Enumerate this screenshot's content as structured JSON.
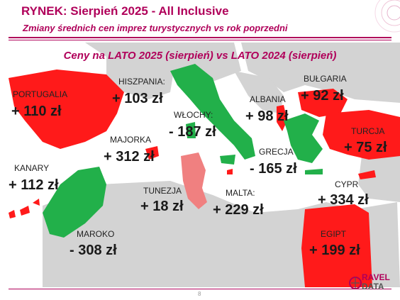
{
  "slide": {
    "title": "RYNEK: Sierpień 2025 - All Inclusive",
    "subtitle": "Zmiany średnich cen imprez turystycznych vs rok poprzedni",
    "heading": "Ceny na LATO 2025 (sierpień) vs  LATO 2024 (sierpień)",
    "page_number": "8"
  },
  "colors": {
    "accent": "#b0005a",
    "increase": "#ff1a1a",
    "decrease": "#22b04a",
    "light_increase": "#f08080",
    "land_neutral": "#d3d3d3"
  },
  "destinations": [
    {
      "name": "PORTUGALIA",
      "value": "+ 110 zł"
    },
    {
      "name": "HISZPANIA:",
      "value": "+ 103 zł"
    },
    {
      "name": "KANARY",
      "value": "+ 112 zł"
    },
    {
      "name": "MAJORKA",
      "value": "+ 312 zł"
    },
    {
      "name": "WŁOCHY:",
      "value": "- 187 zł"
    },
    {
      "name": "ALBANIA",
      "value": "+ 98 zł"
    },
    {
      "name": "BUŁGARIA",
      "value": "+ 92 zł"
    },
    {
      "name": "TURCJA",
      "value": "+ 75 zł"
    },
    {
      "name": "GRECJA",
      "value": "- 165 zł"
    },
    {
      "name": "TUNEZJA",
      "value": "+ 18 zł"
    },
    {
      "name": "MALTA:",
      "value": "+ 229 zł"
    },
    {
      "name": "CYPR",
      "value": "+ 334 zł"
    },
    {
      "name": "MAROKO",
      "value": "- 308 zł"
    },
    {
      "name": "EGIPT",
      "value": "+ 199 zł"
    }
  ],
  "logo": {
    "line1": "RAVEL",
    "line2": "DATA"
  }
}
